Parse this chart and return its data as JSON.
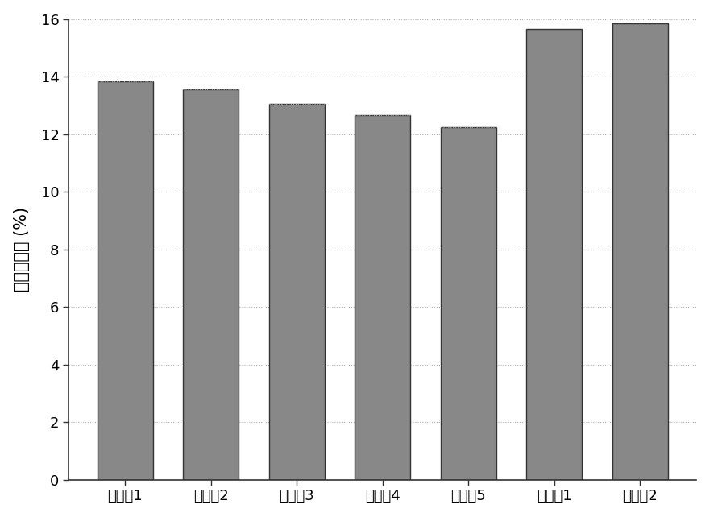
{
  "categories": [
    "实施例1",
    "实施例2",
    "实施例3",
    "实施例4",
    "实施例5",
    "对比例1",
    "对比例2"
  ],
  "values": [
    13.85,
    13.55,
    13.05,
    12.65,
    12.25,
    15.65,
    15.85
  ],
  "bar_color": "#888888",
  "bar_edgecolor": "#333333",
  "bar_edgewidth": 1.0,
  "ylabel": "质量变化率 (%)",
  "ylim": [
    0,
    16
  ],
  "yticks": [
    0,
    2,
    4,
    6,
    8,
    10,
    12,
    14,
    16
  ],
  "background_color": "#ffffff",
  "ylabel_fontsize": 15,
  "tick_fontsize": 13,
  "bar_width": 0.65,
  "grid_color": "#aaaaaa",
  "grid_linestyle": "dotted",
  "grid_linewidth": 0.8,
  "spine_linewidth": 1.2
}
